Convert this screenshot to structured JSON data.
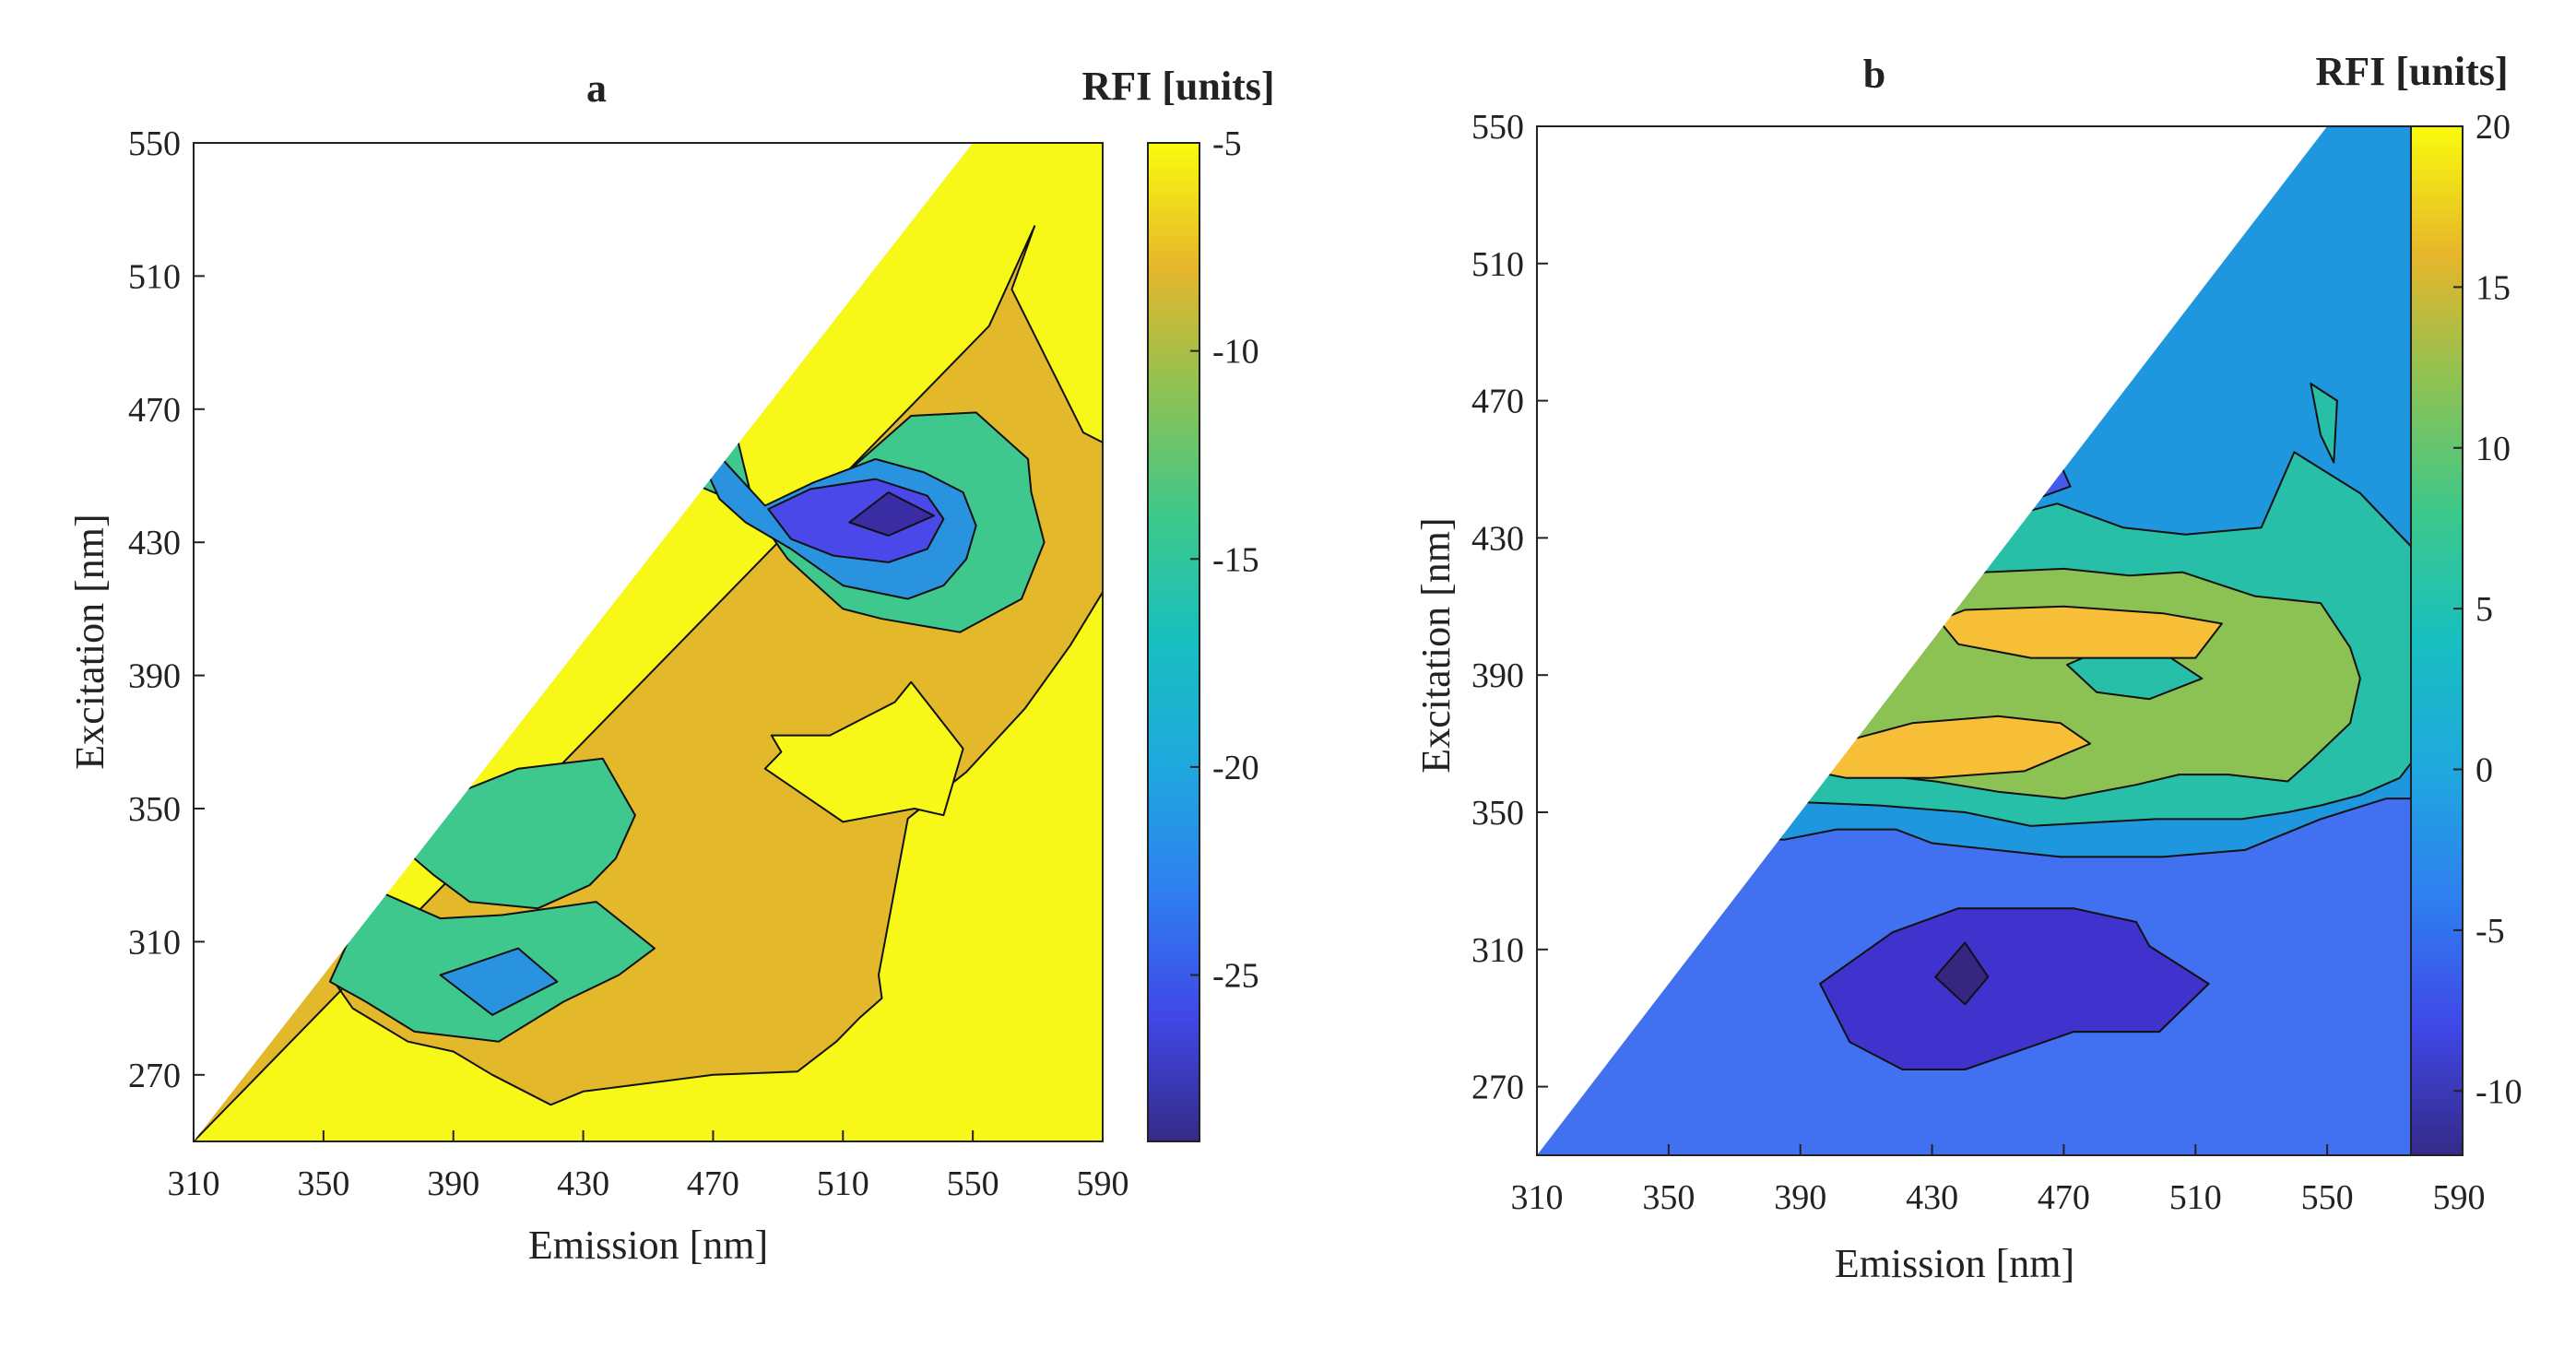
{
  "chart_data": [
    {
      "type": "contour",
      "title": "a",
      "xlabel": "Emission [nm]",
      "ylabel": "Excitation [nm]",
      "xlim": [
        310,
        590
      ],
      "ylim": [
        250,
        550
      ],
      "xticks": [
        "310",
        "350",
        "390",
        "430",
        "470",
        "510",
        "550",
        "590"
      ],
      "yticks": [
        "270",
        "310",
        "350",
        "390",
        "430",
        "470",
        "510",
        "550"
      ],
      "colorbar": {
        "title": "RFI [units]",
        "range": [
          -29,
          -5
        ],
        "ticks": [
          "-5",
          "-10",
          "-15",
          "-20",
          "-25"
        ],
        "tick_values": [
          -5,
          -10,
          -15,
          -20,
          -25
        ]
      },
      "masked_region": "excitation > emission (upper-left triangle)",
      "background_level": -5,
      "regions": [
        {
          "level": -10,
          "color": "#e4b82b",
          "points": [
            [
              310,
              250
            ],
            [
              555,
              495
            ],
            [
              569,
              525
            ],
            [
              562,
              506
            ],
            [
              584,
              463
            ],
            [
              590,
              460
            ],
            [
              590,
              415
            ],
            [
              580,
              399
            ],
            [
              566,
              380
            ],
            [
              548,
              361
            ],
            [
              530,
              347
            ],
            [
              521,
              300
            ],
            [
              522,
              293
            ],
            [
              515,
              287
            ],
            [
              508,
              280
            ],
            [
              496,
              271
            ],
            [
              470,
              270
            ],
            [
              446,
              267
            ],
            [
              430,
              265
            ],
            [
              420,
              261
            ],
            [
              402,
              270
            ],
            [
              390,
              277
            ],
            [
              376,
              280
            ],
            [
              359,
              290
            ],
            [
              354,
              297
            ],
            [
              358,
              313
            ],
            [
              365,
              326
            ],
            [
              372,
              340
            ],
            [
              376,
              350
            ],
            [
              384,
              358
            ],
            [
              388,
              367
            ],
            [
              394,
              374
            ]
          ]
        },
        {
          "level": -5,
          "color": "#f7f718",
          "points": [
            [
              486,
              362
            ],
            [
              491,
              367
            ],
            [
              488,
              372
            ],
            [
              506,
              372
            ],
            [
              526,
              382
            ],
            [
              531,
              388
            ],
            [
              547,
              368
            ],
            [
              541,
              348
            ],
            [
              532,
              350
            ],
            [
              521,
              348
            ],
            [
              510,
              346
            ]
          ]
        },
        {
          "level": -15,
          "color": "#3fc88e",
          "points": [
            [
              430,
              462
            ],
            [
              475,
              471
            ],
            [
              484,
              435
            ],
            [
              497,
              442
            ],
            [
              510,
              450
            ],
            [
              531,
              468
            ],
            [
              551,
              469
            ],
            [
              567,
              455
            ],
            [
              568,
              445
            ],
            [
              572,
              430
            ],
            [
              565,
              413
            ],
            [
              546,
              403
            ],
            [
              522,
              407
            ],
            [
              510,
              410
            ],
            [
              493,
              425
            ],
            [
              482,
              440
            ]
          ]
        },
        {
          "level": -15,
          "color": "#3fc88e",
          "points": [
            [
              372,
              340
            ],
            [
              392,
              355
            ],
            [
              410,
              362
            ],
            [
              436,
              365
            ],
            [
              446,
              348
            ],
            [
              440,
              335
            ],
            [
              432,
              327
            ],
            [
              416,
              320
            ],
            [
              395,
              322
            ],
            [
              384,
              330
            ]
          ]
        },
        {
          "level": -15,
          "color": "#3fc88e",
          "points": [
            [
              365,
              326
            ],
            [
              386,
              317
            ],
            [
              405,
              318
            ],
            [
              434,
              322
            ],
            [
              452,
              308
            ],
            [
              441,
              300
            ],
            [
              424,
              292
            ],
            [
              404,
              280
            ],
            [
              378,
              283
            ],
            [
              363,
              292
            ],
            [
              352,
              298
            ]
          ]
        },
        {
          "level": -20,
          "color": "#2a93e0",
          "points": [
            [
              462,
              464
            ],
            [
              470,
              458
            ],
            [
              486,
              441
            ],
            [
              501,
              448
            ],
            [
              520,
              455
            ],
            [
              535,
              451
            ],
            [
              547,
              445
            ],
            [
              551,
              435
            ],
            [
              548,
              425
            ],
            [
              541,
              417
            ],
            [
              530,
              413
            ],
            [
              510,
              417
            ],
            [
              494,
              428
            ],
            [
              480,
              436
            ],
            [
              472,
              443
            ]
          ]
        },
        {
          "level": -20,
          "color": "#2a93e0",
          "points": [
            [
              386,
              300
            ],
            [
              402,
              288
            ],
            [
              422,
              298
            ],
            [
              410,
              308
            ]
          ]
        },
        {
          "level": -25,
          "color": "#4a48e8",
          "points": [
            [
              487,
              440
            ],
            [
              500,
              446
            ],
            [
              520,
              449
            ],
            [
              536,
              444
            ],
            [
              541,
              437
            ],
            [
              536,
              428
            ],
            [
              524,
              424
            ],
            [
              507,
              426
            ],
            [
              494,
              431
            ]
          ]
        },
        {
          "level": -28,
          "color": "#3a2ca2",
          "points": [
            [
              512,
              436
            ],
            [
              524,
              445
            ],
            [
              538,
              438
            ],
            [
              524,
              432
            ]
          ]
        }
      ]
    },
    {
      "type": "contour",
      "title": "b",
      "xlabel": "Emission [nm]",
      "ylabel": "Excitation [nm]",
      "xlim": [
        310,
        590
      ],
      "ylim": [
        250,
        550
      ],
      "xticks": [
        "310",
        "350",
        "390",
        "430",
        "470",
        "510",
        "550",
        "590"
      ],
      "yticks": [
        "270",
        "310",
        "350",
        "390",
        "430",
        "470",
        "510",
        "550"
      ],
      "colorbar": {
        "title": "RFI [units]",
        "range": [
          -12,
          20
        ],
        "ticks": [
          "20",
          "15",
          "10",
          "5",
          "0",
          "-5",
          "-10"
        ],
        "tick_values": [
          20,
          15,
          10,
          5,
          0,
          -5,
          -10
        ]
      },
      "masked_region": "excitation > emission (upper-left triangle)",
      "background_level": -2,
      "regions": [
        {
          "level": -5,
          "color": "#4170f0",
          "points": [
            [
              310,
              250
            ],
            [
              591,
              250
            ],
            [
              590,
              354
            ],
            [
              568,
              354
            ],
            [
              548,
              348
            ],
            [
              525,
              339
            ],
            [
              500,
              337
            ],
            [
              469,
              337
            ],
            [
              430,
              341
            ],
            [
              419,
              345
            ],
            [
              401,
              345
            ],
            [
              385,
              342
            ],
            [
              344,
              344
            ]
          ]
        },
        {
          "level": -10,
          "color": "#4032cc",
          "points": [
            [
              396,
              300
            ],
            [
              418,
              315
            ],
            [
              438,
              322
            ],
            [
              473,
              322
            ],
            [
              492,
              318
            ],
            [
              496,
              311
            ],
            [
              514,
              300
            ],
            [
              499,
              286
            ],
            [
              494,
              286
            ],
            [
              473,
              286
            ],
            [
              440,
              275
            ],
            [
              421,
              275
            ],
            [
              405,
              283
            ]
          ]
        },
        {
          "level": -12,
          "color": "#352780",
          "points": [
            [
              431,
              302
            ],
            [
              440,
              312
            ],
            [
              447,
              302
            ],
            [
              440,
              294
            ]
          ]
        },
        {
          "level": -7,
          "color": "#4559ef",
          "points": [
            [
              456,
              457
            ],
            [
              466,
              471
            ],
            [
              465,
              460
            ],
            [
              472,
              445
            ],
            [
              452,
              438
            ]
          ]
        },
        {
          "level": 5,
          "color": "#27bfa8",
          "points": [
            [
              362,
              350
            ],
            [
              381,
              370
            ],
            [
              396,
              385
            ],
            [
              412,
              407
            ],
            [
              430,
              426
            ],
            [
              440,
              433
            ],
            [
              468,
              440
            ],
            [
              488,
              433
            ],
            [
              507,
              431
            ],
            [
              530,
              433
            ],
            [
              540,
              455
            ],
            [
              560,
              443
            ],
            [
              578,
              425
            ],
            [
              590,
              410
            ],
            [
              584,
              375
            ],
            [
              572,
              360
            ],
            [
              560,
              355
            ],
            [
              548,
              352
            ],
            [
              538,
              350
            ],
            [
              524,
              348
            ],
            [
              498,
              348
            ],
            [
              478,
              347
            ],
            [
              460,
              346
            ],
            [
              440,
              350
            ],
            [
              414,
              352
            ],
            [
              388,
              353
            ],
            [
              376,
              350
            ]
          ]
        },
        {
          "level": 10,
          "color": "#8cc254",
          "points": [
            [
              380,
              362
            ],
            [
              388,
              371
            ],
            [
              398,
              392
            ],
            [
              413,
              402
            ],
            [
              432,
              412
            ],
            [
              446,
              420
            ],
            [
              470,
              421
            ],
            [
              490,
              419
            ],
            [
              506,
              420
            ],
            [
              528,
              413
            ],
            [
              548,
              411
            ],
            [
              557,
              398
            ],
            [
              560,
              389
            ],
            [
              557,
              376
            ],
            [
              545,
              365
            ],
            [
              538,
              359
            ],
            [
              520,
              361
            ],
            [
              505,
              361
            ],
            [
              492,
              358
            ],
            [
              470,
              354
            ],
            [
              450,
              356
            ],
            [
              431,
              359
            ],
            [
              412,
              361
            ]
          ]
        },
        {
          "level": 5,
          "color": "#27bfa8",
          "points": [
            [
              545,
              475
            ],
            [
              553,
              470
            ],
            [
              552,
              452
            ],
            [
              548,
              460
            ]
          ]
        },
        {
          "level": 5,
          "color": "#27bfa8",
          "points": [
            [
              471,
              393
            ],
            [
              483,
              398
            ],
            [
              501,
              396
            ],
            [
              512,
              389
            ],
            [
              496,
              383
            ],
            [
              480,
              385
            ]
          ]
        },
        {
          "level": 15,
          "color": "#f7bf38",
          "points": [
            [
              388,
              363
            ],
            [
              397,
              369
            ],
            [
              424,
              376
            ],
            [
              450,
              378
            ],
            [
              469,
              376
            ],
            [
              478,
              370
            ],
            [
              458,
              362
            ],
            [
              430,
              360
            ],
            [
              404,
              360
            ]
          ]
        },
        {
          "level": 15,
          "color": "#f7bf38",
          "points": [
            [
              432,
              406
            ],
            [
              440,
              409
            ],
            [
              470,
              410
            ],
            [
              500,
              408
            ],
            [
              518,
              405
            ],
            [
              510,
              395
            ],
            [
              486,
              395
            ],
            [
              460,
              395
            ],
            [
              438,
              399
            ]
          ]
        }
      ]
    }
  ]
}
